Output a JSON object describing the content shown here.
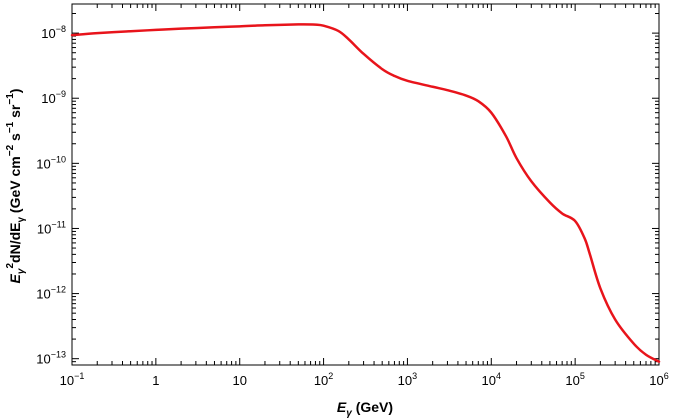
{
  "chart_data": {
    "type": "line",
    "xscale": "log",
    "yscale": "log",
    "xlim": [
      0.1,
      1000000
    ],
    "ylim": [
      8e-14,
      2.8e-08
    ],
    "x_ticks": [
      "10^-1",
      "1",
      "10",
      "10^2",
      "10^3",
      "10^4",
      "10^5",
      "10^6"
    ],
    "y_ticks": [
      "10^-13",
      "10^-12",
      "10^-11",
      "10^-10",
      "10^-9",
      "10^-8"
    ],
    "xlabel": {
      "symbol": "E",
      "subscript": "γ",
      "unit": "(GeV)"
    },
    "ylabel": "E_γ^2 dN/dE_γ (GeV cm^-2 s^-1 sr^-1)",
    "grid": false,
    "series": [
      {
        "color": "#e8141b",
        "x": [
          0.1,
          0.2,
          0.5,
          1,
          2,
          5,
          10,
          20,
          50,
          80,
          100,
          150,
          200,
          300,
          500,
          700,
          1000,
          2000,
          3000,
          5000,
          7000,
          10000,
          15000,
          20000,
          30000,
          50000,
          70000,
          100000,
          130000,
          150000,
          200000,
          300000,
          500000,
          700000,
          1000000
        ],
        "y": [
          9.3e-09,
          1e-08,
          1.07e-08,
          1.12e-08,
          1.17e-08,
          1.23e-08,
          1.27e-08,
          1.32e-08,
          1.36e-08,
          1.35e-08,
          1.3e-08,
          1.08e-08,
          8e-09,
          4.8e-09,
          2.8e-09,
          2.2e-09,
          1.85e-09,
          1.5e-09,
          1.33e-09,
          1.1e-09,
          9e-10,
          6e-10,
          2.6e-10,
          1.2e-10,
          5.3e-11,
          2.5e-11,
          1.7e-11,
          1.3e-11,
          7e-12,
          4e-12,
          1.2e-12,
          4e-13,
          1.7e-13,
          1.15e-13,
          9e-14
        ]
      }
    ]
  }
}
